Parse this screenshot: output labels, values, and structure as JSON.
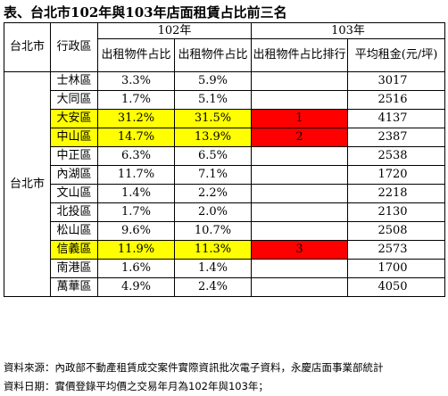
{
  "title": "表、台北市102年與103年店面租賃占比前三名",
  "table": {
    "city_header": "台北市",
    "district_header": "行政區",
    "year1": "102年",
    "year2": "103年",
    "col_share_102": "出租物件占比",
    "col_share_103": "出租物件占比",
    "col_rank_103": "出租物件占比排行",
    "col_rent_103": "平均租金(元/坪)",
    "city_label": "台北市",
    "rows": [
      {
        "district": "士林區",
        "share102": "3.3%",
        "share103": "5.9%",
        "rank": "",
        "rent": "3017"
      },
      {
        "district": "大同區",
        "share102": "1.7%",
        "share103": "5.1%",
        "rank": "",
        "rent": "2516"
      },
      {
        "district": "大安區",
        "share102": "31.2%",
        "share103": "31.5%",
        "rank": "1",
        "rent": "4137"
      },
      {
        "district": "中山區",
        "share102": "14.7%",
        "share103": "13.9%",
        "rank": "2",
        "rent": "2387"
      },
      {
        "district": "中正區",
        "share102": "6.3%",
        "share103": "6.5%",
        "rank": "",
        "rent": "2538"
      },
      {
        "district": "內湖區",
        "share102": "11.7%",
        "share103": "7.1%",
        "rank": "",
        "rent": "1720"
      },
      {
        "district": "文山區",
        "share102": "1.4%",
        "share103": "2.2%",
        "rank": "",
        "rent": "2218"
      },
      {
        "district": "北投區",
        "share102": "1.7%",
        "share103": "2.0%",
        "rank": "",
        "rent": "2130"
      },
      {
        "district": "松山區",
        "share102": "9.6%",
        "share103": "10.7%",
        "rank": "",
        "rent": "2508"
      },
      {
        "district": "信義區",
        "share102": "11.9%",
        "share103": "11.3%",
        "rank": "3",
        "rent": "2573"
      },
      {
        "district": "南港區",
        "share102": "1.6%",
        "share103": "1.4%",
        "rank": "",
        "rent": "1700"
      },
      {
        "district": "萬華區",
        "share102": "4.9%",
        "share103": "2.4%",
        "rank": "",
        "rent": "4050"
      }
    ]
  },
  "colors": {
    "highlight": "#ffff00",
    "top_rank": "#ff0000"
  },
  "source_note": "資料來源：內政部不動產租賃成交案件實際資訊批次電子資料，永慶店面事業部統計",
  "date_note": "資料日期：實價登錄平均價之交易年月為102年與103年；"
}
